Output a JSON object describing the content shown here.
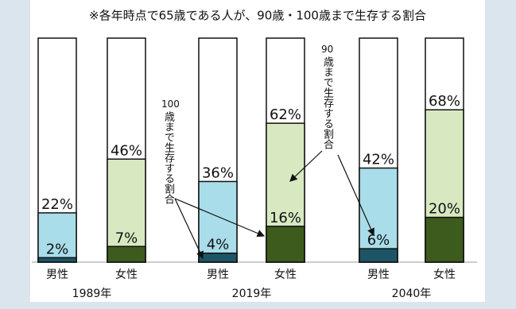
{
  "chart_data": {
    "type": "overlap-bar",
    "title": "※各年時点で65歳である人が、90歳・100歳まで生存する割合",
    "categories": [
      "男性",
      "女性",
      "男性",
      "女性",
      "男性",
      "女性"
    ],
    "groups": [
      "1989年",
      "2019年",
      "2040年"
    ],
    "ylim": [
      0,
      100
    ],
    "series": [
      {
        "values": [
          22,
          46,
          36,
          62,
          42,
          68
        ],
        "value_labels": [
          "22%",
          "46%",
          "36%",
          "62%",
          "42%",
          "68%"
        ],
        "colors": [
          "#a9dde9",
          "#d8e9c2",
          "#a9dde9",
          "#d8e9c2",
          "#a9dde9",
          "#d8e9c2"
        ]
      },
      {
        "values": [
          2,
          7,
          4,
          16,
          6,
          20
        ],
        "value_labels": [
          "2%",
          "7%",
          "4%",
          "16%",
          "6%",
          "20%"
        ],
        "colors": [
          "#1d5566",
          "#3d5b1c",
          "#1d5566",
          "#3d5b1c",
          "#1d5566",
          "#3d5b1c"
        ]
      }
    ],
    "annotations": [
      {
        "head": "100",
        "body": "歳まで生存する割合"
      },
      {
        "head": "90",
        "body": "歳まで生存する割合"
      }
    ]
  }
}
